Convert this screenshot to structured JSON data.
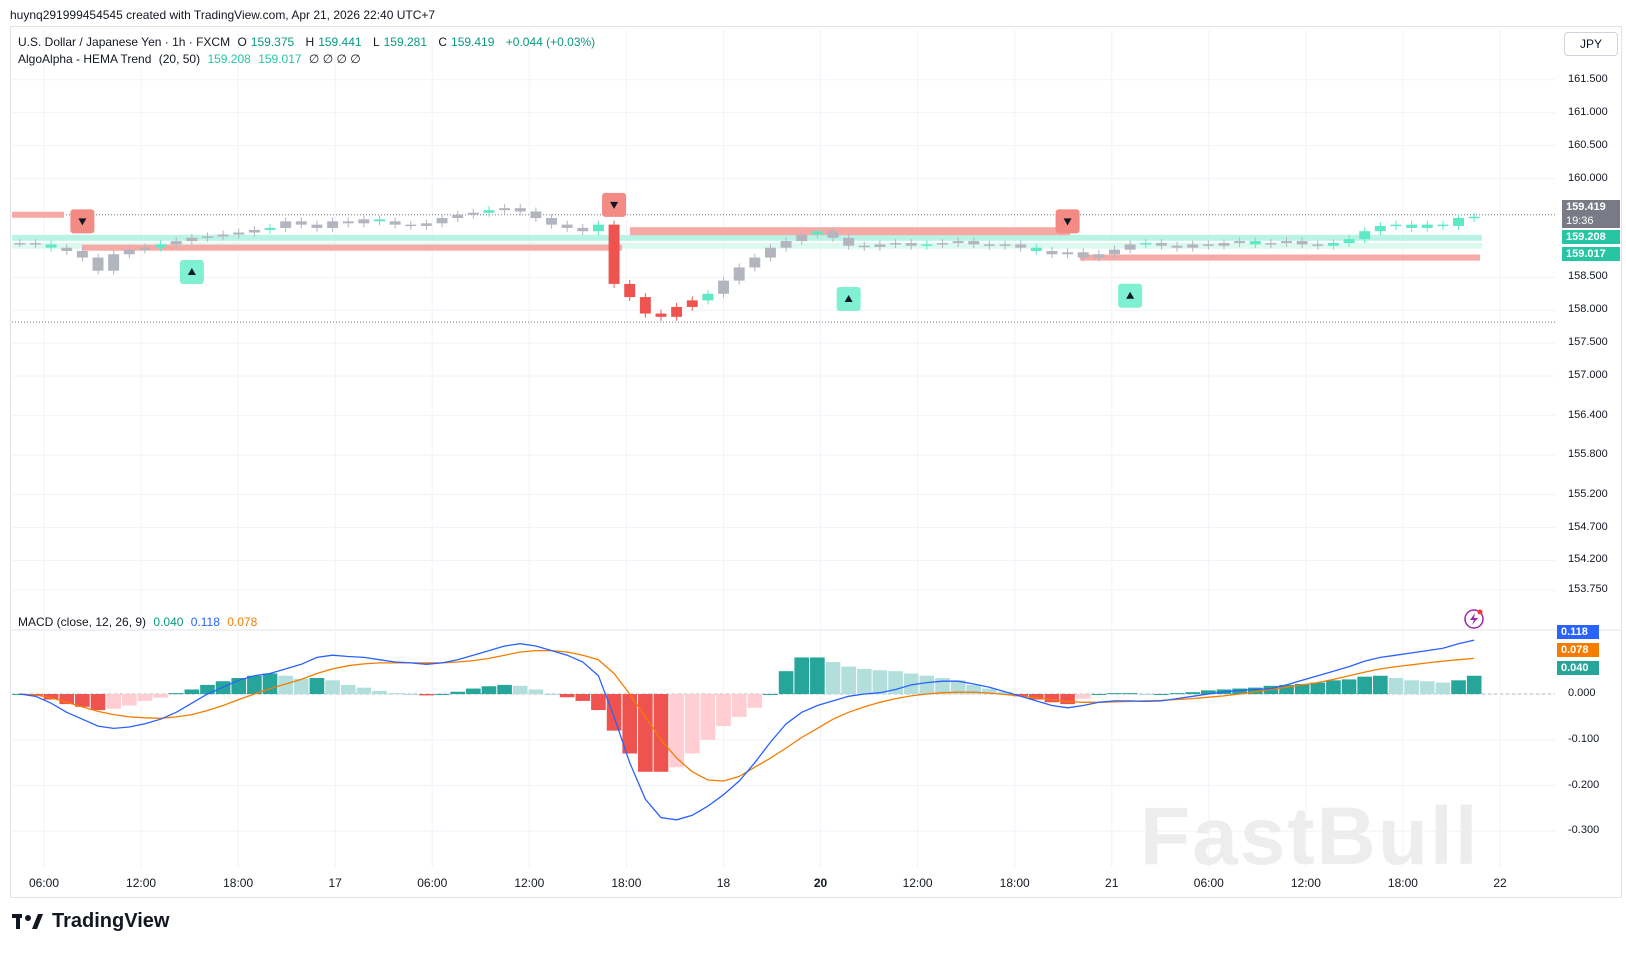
{
  "header": {
    "watermark_line": "huynq291999454545 created with TradingView.com, Apr 21, 2026 22:40 UTC+7"
  },
  "legend": {
    "symbol": "U.S. Dollar / Japanese Yen · 1h · FXCM",
    "open_label": "O",
    "open": "159.375",
    "high_label": "H",
    "high": "159.441",
    "low_label": "L",
    "low": "159.281",
    "close_label": "C",
    "close": "159.419",
    "change": "+0.044 (+0.03%)",
    "indicator": "AlgoAlpha - HEMA Trend",
    "indicator_params": "(20, 50)",
    "ind_v1": "159.208",
    "ind_v2": "159.017",
    "ind_extra": "∅ ∅ ∅ ∅",
    "macd_name": "MACD (close, 12, 26, 9)",
    "macd_hist": "0.040",
    "macd_line": "0.118",
    "macd_signal": "0.078"
  },
  "currency_button": "JPY",
  "price_labels": {
    "last": "159.419",
    "countdown": "19:36",
    "hema_fast": "159.208",
    "hema_slow": "159.017"
  },
  "macd_labels": {
    "macd": "0.118",
    "signal": "0.078",
    "hist": "0.040"
  },
  "brand": "TradingView",
  "watermark": "FastBull",
  "colors": {
    "up": "#26a69a",
    "down": "#ef5350",
    "neutral": "#b2b5be",
    "macd": "#2962ff",
    "signal": "#f57c00",
    "hema_fast": "#26c6a4",
    "hema_slow": "#f7a9a5"
  },
  "chart_data": [
    {
      "type": "candlestick",
      "title": "U.S. Dollar / Japanese Yen · 1h · FXCM",
      "y_ticks": [
        "161.500",
        "161.000",
        "160.500",
        "160.000",
        "158.500",
        "158.000",
        "157.500",
        "157.000",
        "156.400",
        "155.800",
        "155.200",
        "154.700",
        "154.200",
        "153.750"
      ],
      "x_ticks": [
        "06:00",
        "12:00",
        "18:00",
        "17",
        "06:00",
        "12:00",
        "18:00",
        "18",
        "20",
        "12:00",
        "18:00",
        "21",
        "06:00",
        "12:00",
        "18:00",
        "22"
      ],
      "ylim": [
        153.6,
        161.8
      ],
      "close_series": [
        159.02,
        159.0,
        158.95,
        158.9,
        158.8,
        158.6,
        158.85,
        158.92,
        158.95,
        159.0,
        159.05,
        159.1,
        159.12,
        159.15,
        159.18,
        159.22,
        159.25,
        159.35,
        159.3,
        159.25,
        159.35,
        159.32,
        159.38,
        159.35,
        159.3,
        159.28,
        159.32,
        159.4,
        159.45,
        159.48,
        159.52,
        159.55,
        159.5,
        159.4,
        159.3,
        159.25,
        159.2,
        159.3,
        158.4,
        158.2,
        157.95,
        157.9,
        158.05,
        158.15,
        158.25,
        158.45,
        158.65,
        158.8,
        158.95,
        159.05,
        159.15,
        159.2,
        159.1,
        158.98,
        158.96,
        159.0,
        159.02,
        158.98,
        159.0,
        159.02,
        159.05,
        159.0,
        158.98,
        159.0,
        158.95,
        158.9,
        158.85,
        158.88,
        158.8,
        158.85,
        158.92,
        159.0,
        159.02,
        158.98,
        158.95,
        159.0,
        158.98,
        159.02,
        159.05,
        159.0,
        159.02,
        159.05,
        159.0,
        158.98,
        159.02,
        159.08,
        159.2,
        159.28,
        159.3,
        159.25,
        159.3,
        159.28,
        159.4,
        159.42
      ],
      "annotations": [
        "sell signals: 3",
        "buy signals: 3"
      ]
    },
    {
      "type": "macd",
      "title": "MACD (close, 12, 26, 9)",
      "y_ticks": [
        "0.000",
        "-0.100",
        "-0.200",
        "-0.300"
      ],
      "ylim": [
        -0.33,
        0.14
      ],
      "series": [
        {
          "name": "MACD",
          "values": [
            0.0,
            -0.005,
            -0.02,
            -0.04,
            -0.055,
            -0.07,
            -0.075,
            -0.072,
            -0.065,
            -0.055,
            -0.04,
            -0.02,
            0.0,
            0.015,
            0.03,
            0.04,
            0.045,
            0.055,
            0.065,
            0.08,
            0.085,
            0.082,
            0.08,
            0.075,
            0.07,
            0.068,
            0.065,
            0.068,
            0.075,
            0.085,
            0.095,
            0.105,
            0.11,
            0.105,
            0.095,
            0.085,
            0.07,
            0.04,
            -0.05,
            -0.15,
            -0.23,
            -0.27,
            -0.275,
            -0.265,
            -0.245,
            -0.22,
            -0.19,
            -0.15,
            -0.105,
            -0.065,
            -0.04,
            -0.025,
            -0.015,
            -0.005,
            0.0,
            0.003,
            0.01,
            0.02,
            0.025,
            0.028,
            0.028,
            0.022,
            0.015,
            0.005,
            -0.005,
            -0.015,
            -0.025,
            -0.03,
            -0.025,
            -0.018,
            -0.015,
            -0.015,
            -0.016,
            -0.015,
            -0.01,
            -0.005,
            0.0,
            0.005,
            0.008,
            0.01,
            0.012,
            0.02,
            0.03,
            0.04,
            0.05,
            0.06,
            0.072,
            0.08,
            0.085,
            0.09,
            0.095,
            0.1,
            0.11,
            0.118
          ]
        },
        {
          "name": "Signal",
          "values": [
            0.0,
            -0.002,
            -0.008,
            -0.018,
            -0.028,
            -0.038,
            -0.045,
            -0.05,
            -0.052,
            -0.053,
            -0.05,
            -0.045,
            -0.036,
            -0.025,
            -0.012,
            0.0,
            0.012,
            0.022,
            0.032,
            0.045,
            0.055,
            0.062,
            0.066,
            0.068,
            0.068,
            0.068,
            0.068,
            0.068,
            0.07,
            0.073,
            0.078,
            0.085,
            0.092,
            0.095,
            0.095,
            0.092,
            0.085,
            0.075,
            0.045,
            0.0,
            -0.05,
            -0.1,
            -0.14,
            -0.17,
            -0.188,
            -0.19,
            -0.18,
            -0.16,
            -0.14,
            -0.118,
            -0.095,
            -0.075,
            -0.055,
            -0.04,
            -0.028,
            -0.018,
            -0.01,
            -0.004,
            0.0,
            0.003,
            0.004,
            0.004,
            0.002,
            -0.001,
            -0.004,
            -0.008,
            -0.012,
            -0.016,
            -0.018,
            -0.018,
            -0.017,
            -0.016,
            -0.015,
            -0.014,
            -0.012,
            -0.01,
            -0.007,
            -0.004,
            0.0,
            0.005,
            0.01,
            0.015,
            0.02,
            0.025,
            0.032,
            0.04,
            0.048,
            0.055,
            0.06,
            0.064,
            0.068,
            0.072,
            0.075,
            0.078
          ]
        },
        {
          "name": "Histogram",
          "values": [
            0.0,
            -0.004,
            -0.012,
            -0.022,
            -0.028,
            -0.035,
            -0.032,
            -0.025,
            -0.015,
            -0.008,
            0.002,
            0.01,
            0.02,
            0.028,
            0.035,
            0.04,
            0.045,
            0.04,
            0.033,
            0.035,
            0.03,
            0.02,
            0.014,
            0.007,
            0.002,
            0.0,
            -0.003,
            0.0,
            0.005,
            0.012,
            0.017,
            0.02,
            0.018,
            0.01,
            0.0,
            -0.007,
            -0.015,
            -0.035,
            -0.08,
            -0.13,
            -0.17,
            -0.17,
            -0.16,
            -0.13,
            -0.1,
            -0.07,
            -0.05,
            -0.03,
            0.0,
            0.05,
            0.08,
            0.08,
            0.07,
            0.06,
            0.055,
            0.052,
            0.05,
            0.045,
            0.04,
            0.035,
            0.03,
            0.02,
            0.012,
            0.005,
            -0.005,
            -0.012,
            -0.018,
            -0.022,
            -0.01,
            0.0,
            0.002,
            0.002,
            0.0,
            0.0,
            0.002,
            0.004,
            0.008,
            0.01,
            0.012,
            0.014,
            0.018,
            0.02,
            0.022,
            0.025,
            0.03,
            0.032,
            0.038,
            0.04,
            0.035,
            0.03,
            0.028,
            0.025,
            0.03,
            0.04
          ]
        }
      ]
    }
  ]
}
